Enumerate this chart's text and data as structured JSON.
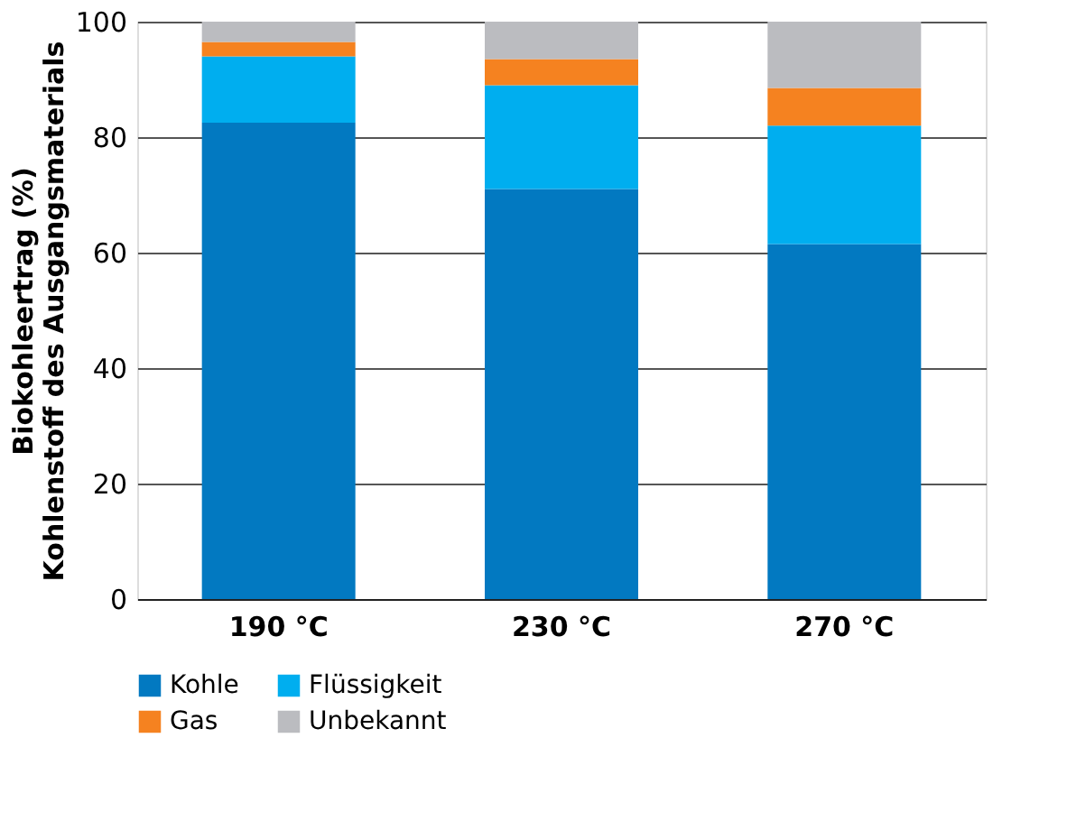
{
  "chart_data": {
    "type": "bar",
    "stacked": true,
    "ylabel": "Biokohleertrag (%)\nKohlenstoff des Ausgangsmaterials",
    "categories": [
      "190 °C",
      "230 °C",
      "270 °C"
    ],
    "series": [
      {
        "name": "Kohle",
        "color": "#0279c1",
        "values": [
          82.5,
          71,
          61.5
        ]
      },
      {
        "name": "Flüssigkeit",
        "color": "#00aeef",
        "values": [
          11.5,
          18,
          20.5
        ]
      },
      {
        "name": "Gas",
        "color": "#f58220",
        "values": [
          2.5,
          4.5,
          6.5
        ]
      },
      {
        "name": "Unbekannt",
        "color": "#bbbcc0",
        "values": [
          3.5,
          6.5,
          11.5
        ]
      }
    ],
    "ylim": [
      0,
      100
    ],
    "yticks": [
      0,
      20,
      40,
      60,
      80,
      100
    ],
    "grid": "y",
    "legend": "bottom"
  }
}
